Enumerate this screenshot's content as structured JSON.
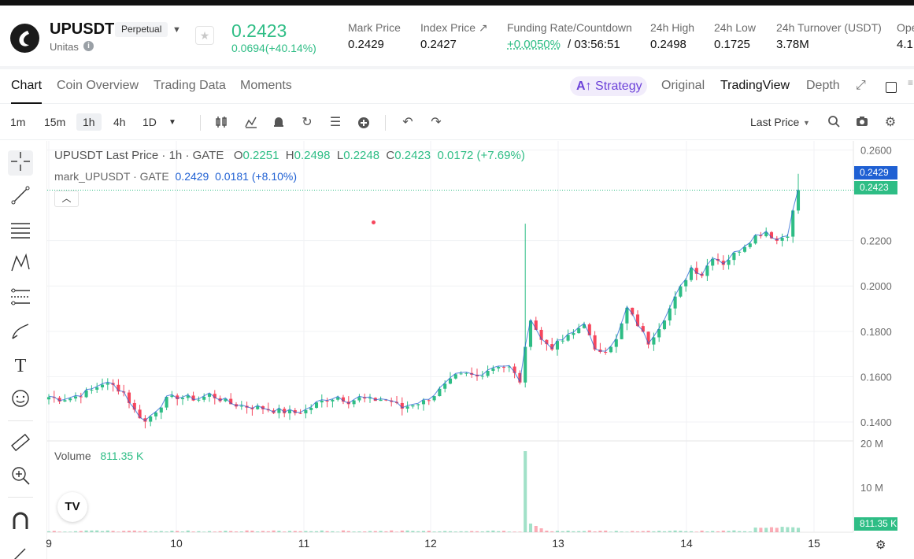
{
  "header": {
    "symbol": "UPUSDT",
    "badge": "Perpetual",
    "subtitle": "Unitas",
    "price": "0.2423",
    "change": "0.0694(+40.14%)",
    "stats": [
      {
        "label": "Mark Price",
        "value": "0.2429"
      },
      {
        "label": "Index Price ↗",
        "value": "0.2427"
      },
      {
        "label": "Funding Rate/Countdown",
        "value_green": "+0.0050%",
        "value": "/ 03:56:51"
      },
      {
        "label": "24h High",
        "value": "0.2498"
      },
      {
        "label": "24h Low",
        "value": "0.1725"
      },
      {
        "label": "24h Turnover (USDT)",
        "value": "3.78M"
      },
      {
        "label": "Ope",
        "value": "4.1"
      }
    ]
  },
  "tabs": [
    "Chart",
    "Coin Overview",
    "Trading Data",
    "Moments"
  ],
  "view_tabs": {
    "strategy": "Strategy",
    "original": "Original",
    "tradingview": "TradingView",
    "depth": "Depth"
  },
  "toolbar": {
    "timeframes": [
      "1m",
      "15m",
      "1h",
      "4h",
      "1D"
    ],
    "selected": "1h",
    "last_price": "Last Price"
  },
  "legend": {
    "title": "UPUSDT Last Price · 1h · GATE",
    "o_label": "O",
    "o": "0.2251",
    "h_label": "H",
    "h": "0.2498",
    "l_label": "L",
    "l": "0.2248",
    "c_label": "C",
    "c": "0.2423",
    "chg": "0.0172 (+7.69%)",
    "mark_label": "mark_UPUSDT · GATE",
    "mark_val": "0.2429",
    "mark_chg": "0.0181 (+8.10%)"
  },
  "volume_legend": {
    "label": "Volume",
    "value": "811.35 K"
  },
  "tags": {
    "mark": "0.2429",
    "last": "0.2423",
    "volume": "811.35 K"
  },
  "colors": {
    "up": "#2ebd85",
    "down": "#f6465d",
    "accent": "#6c42d9",
    "mark": "#1f60d3"
  },
  "chart_data": {
    "type": "candlestick",
    "interval": "1h",
    "price_axis_ticks": [
      "0.2600",
      "0.2200",
      "0.2000",
      "0.1800",
      "0.1600",
      "0.1400"
    ],
    "volume_axis_ticks": [
      "20 M",
      "10 M"
    ],
    "x_ticks": [
      "9",
      "10",
      "11",
      "12",
      "13",
      "14",
      "15"
    ],
    "ylim": [
      0.132,
      0.264
    ],
    "last_price": 0.2423,
    "mark_price": 0.2429,
    "series_anchor_closes": [
      [
        0.151,
        0.15,
        0.1505,
        0.152,
        0.154,
        0.157,
        0.156,
        0.153,
        0.145,
        0.14,
        0.145,
        0.15
      ],
      [
        0.151,
        0.1505,
        0.15,
        0.152,
        0.15,
        0.148,
        0.147,
        0.1465,
        0.146,
        0.145,
        0.1445,
        0.144
      ],
      [
        0.145,
        0.148,
        0.15,
        0.151,
        0.149,
        0.1505,
        0.1495,
        0.15,
        0.149,
        0.146,
        0.148,
        0.149
      ],
      [
        0.152,
        0.156,
        0.16,
        0.161,
        0.16,
        0.163,
        0.165,
        0.164,
        0.158,
        0.186,
        0.176,
        0.173
      ],
      [
        0.176,
        0.179,
        0.184,
        0.171,
        0.172,
        0.176,
        0.19,
        0.183,
        0.175,
        0.182,
        0.19,
        0.199
      ],
      [
        0.208,
        0.205,
        0.213,
        0.21,
        0.214,
        0.218,
        0.222,
        0.224,
        0.22,
        0.223,
        0.2423
      ]
    ],
    "volume_spike": {
      "at_index": 45,
      "value": 18500000
    }
  }
}
